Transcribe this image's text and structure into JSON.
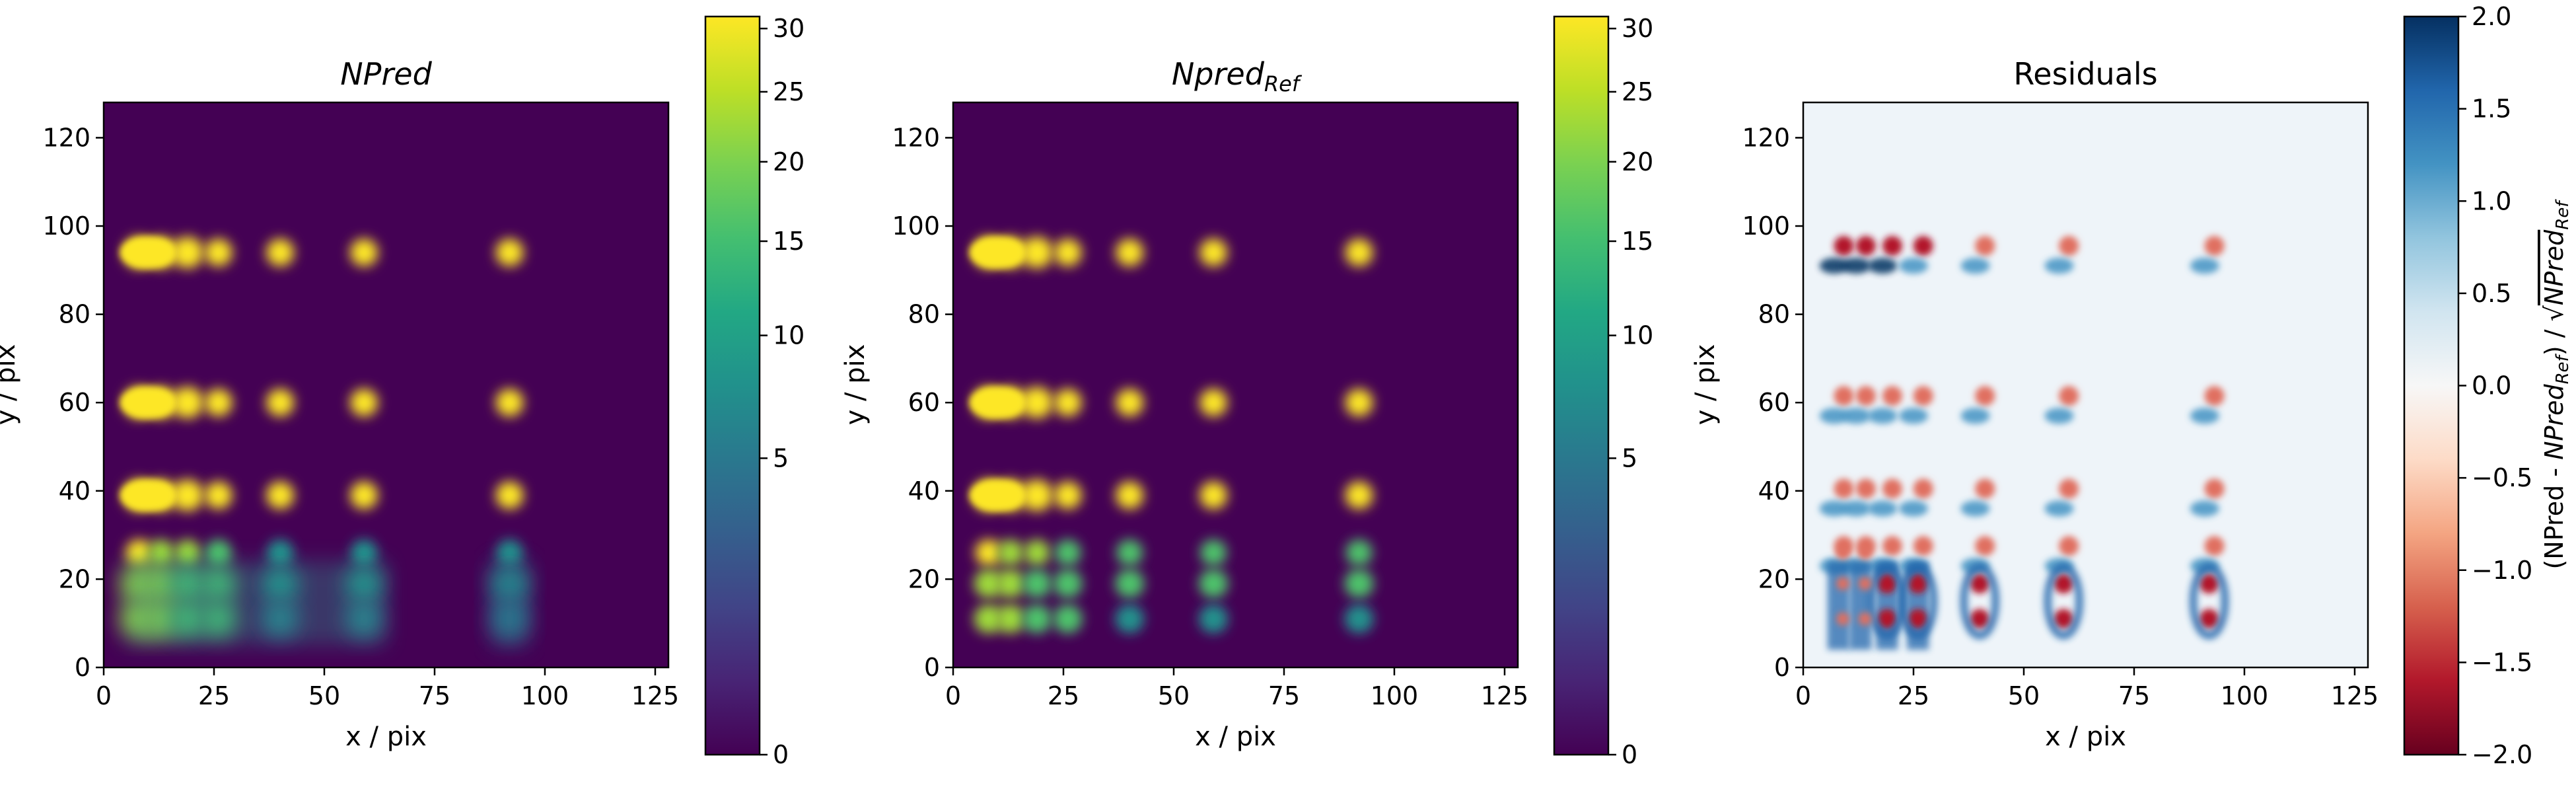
{
  "chart_data": [
    {
      "type": "heatmap",
      "title": "NPred",
      "title_style": "italic",
      "xlabel": "x / pix",
      "ylabel": "y / pix",
      "xlim": [
        0,
        128
      ],
      "ylim": [
        0,
        128
      ],
      "xticks": [
        "0",
        "25",
        "50",
        "75",
        "100",
        "125"
      ],
      "yticks": [
        "0",
        "20",
        "40",
        "60",
        "80",
        "100",
        "120"
      ],
      "colormap": "viridis",
      "colorbar": {
        "scale": "sqrt",
        "range": [
          0,
          31
        ],
        "ticks": [
          "0",
          "5",
          "10",
          "15",
          "20",
          "25",
          "30"
        ],
        "label": ""
      },
      "sources": {
        "columns_x": [
          8,
          13,
          19,
          26,
          40,
          59,
          92
        ],
        "rows_y": [
          94,
          60,
          39,
          26,
          19,
          11
        ]
      }
    },
    {
      "type": "heatmap",
      "title": "Npred",
      "title_subscript": "Ref",
      "title_style": "italic",
      "xlabel": "x / pix",
      "ylabel": "y / pix",
      "xlim": [
        0,
        128
      ],
      "ylim": [
        0,
        128
      ],
      "xticks": [
        "0",
        "25",
        "50",
        "75",
        "100",
        "125"
      ],
      "yticks": [
        "0",
        "20",
        "40",
        "60",
        "80",
        "100",
        "120"
      ],
      "colormap": "viridis",
      "colorbar": {
        "scale": "sqrt",
        "range": [
          0,
          31
        ],
        "ticks": [
          "0",
          "5",
          "10",
          "15",
          "20",
          "25",
          "30"
        ],
        "label": ""
      },
      "sources": {
        "columns_x": [
          8,
          13,
          19,
          26,
          40,
          59,
          92
        ],
        "rows_y": [
          94,
          60,
          39,
          26,
          19,
          11
        ]
      }
    },
    {
      "type": "heatmap",
      "title": "Residuals",
      "xlabel": "x / pix",
      "ylabel": "y / pix",
      "xlim": [
        0,
        128
      ],
      "ylim": [
        0,
        128
      ],
      "xticks": [
        "0",
        "25",
        "50",
        "75",
        "100",
        "125"
      ],
      "yticks": [
        "0",
        "20",
        "40",
        "60",
        "80",
        "100",
        "120"
      ],
      "colormap": "RdBu",
      "colorbar": {
        "scale": "linear",
        "range": [
          -2.0,
          2.0
        ],
        "ticks": [
          "−2.0",
          "−1.5",
          "−1.0",
          "−0.5",
          "0.0",
          "0.5",
          "1.0",
          "1.5",
          "2.0"
        ],
        "label": "(NPred - NPred_Ref) / √NPred_Ref",
        "label_parts": [
          "(NPred - ",
          "NPred",
          "Ref",
          ") / √",
          "NPred",
          "Ref"
        ]
      }
    }
  ]
}
